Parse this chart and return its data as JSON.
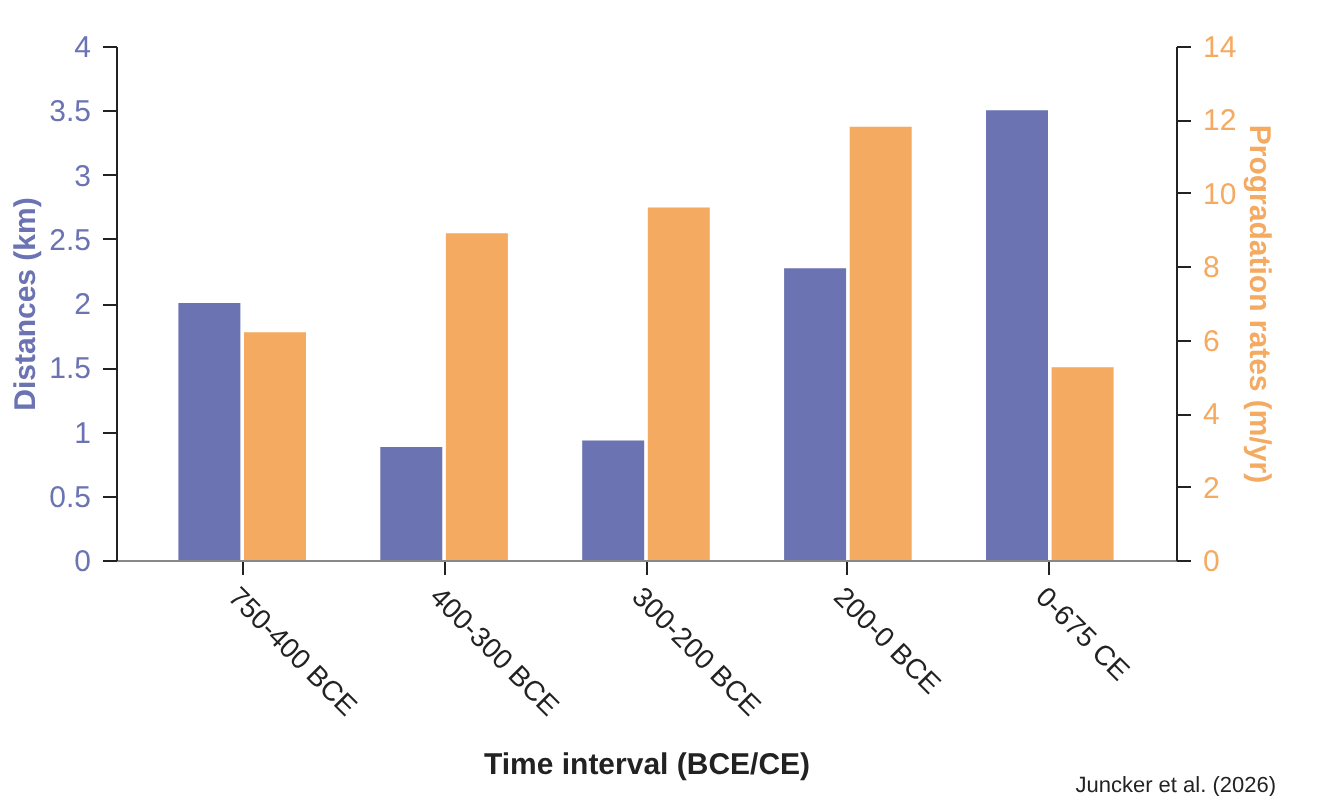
{
  "chart_data": {
    "type": "bar",
    "categories": [
      "750-400 BCE",
      "400-300 BCE",
      "300-200 BCE",
      "200-0 BCE",
      "0-675 CE"
    ],
    "series": [
      {
        "color": "#6b73b3",
        "values": [
          2.0,
          0.88,
          0.93,
          2.27,
          3.5
        ]
      },
      {
        "color": "#f5aa61",
        "axis": "y2",
        "values": [
          6.2,
          8.9,
          9.6,
          11.8,
          5.25
        ]
      }
    ],
    "xlabel": "Time interval (BCE/CE)",
    "ylabel": "Distances (km)",
    "y2label": "Progradation rates (m/yr)",
    "ylim": [
      0,
      4
    ],
    "yticks": [
      0,
      0.5,
      1,
      1.5,
      2,
      2.5,
      3,
      3.5,
      4
    ],
    "y2lim": [
      0,
      14
    ],
    "y2ticks": [
      0,
      2,
      4,
      6,
      8,
      10,
      12,
      14
    ],
    "annotations": [
      "Juncker et al. (2026)"
    ],
    "grid": false
  }
}
